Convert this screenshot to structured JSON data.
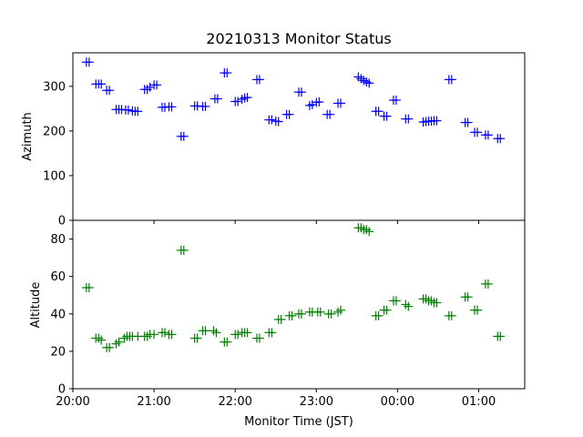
{
  "chart_data": [
    {
      "type": "scatter",
      "title": "20210313 Monitor Status",
      "xlabel": "",
      "ylabel": "Azimuth",
      "marker": "+",
      "color": "#0000ff",
      "ylim": [
        0,
        375
      ],
      "y_ticks": [
        0,
        100,
        200,
        300
      ],
      "x_ticks_hidden": true,
      "series": [
        {
          "points": [
            {
              "x": "20:10",
              "y": 354
            },
            {
              "x": "20:12",
              "y": 354
            },
            {
              "x": "20:17",
              "y": 305
            },
            {
              "x": "20:19",
              "y": 305
            },
            {
              "x": "20:21",
              "y": 305
            },
            {
              "x": "20:25",
              "y": 291
            },
            {
              "x": "20:27",
              "y": 291
            },
            {
              "x": "20:32",
              "y": 248
            },
            {
              "x": "20:34",
              "y": 248
            },
            {
              "x": "20:36",
              "y": 248
            },
            {
              "x": "20:39",
              "y": 247
            },
            {
              "x": "20:41",
              "y": 247
            },
            {
              "x": "20:44",
              "y": 245
            },
            {
              "x": "20:46",
              "y": 244
            },
            {
              "x": "20:48",
              "y": 244
            },
            {
              "x": "20:53",
              "y": 293
            },
            {
              "x": "20:55",
              "y": 293
            },
            {
              "x": "20:57",
              "y": 298
            },
            {
              "x": "21:00",
              "y": 303
            },
            {
              "x": "21:02",
              "y": 303
            },
            {
              "x": "21:06",
              "y": 253
            },
            {
              "x": "21:08",
              "y": 253
            },
            {
              "x": "21:11",
              "y": 254
            },
            {
              "x": "21:13",
              "y": 254
            },
            {
              "x": "21:20",
              "y": 188
            },
            {
              "x": "21:22",
              "y": 188
            },
            {
              "x": "21:30",
              "y": 256
            },
            {
              "x": "21:32",
              "y": 256
            },
            {
              "x": "21:36",
              "y": 255
            },
            {
              "x": "21:38",
              "y": 255
            },
            {
              "x": "21:45",
              "y": 272
            },
            {
              "x": "21:47",
              "y": 272
            },
            {
              "x": "21:52",
              "y": 330
            },
            {
              "x": "21:54",
              "y": 330
            },
            {
              "x": "22:00",
              "y": 266
            },
            {
              "x": "22:02",
              "y": 266
            },
            {
              "x": "22:05",
              "y": 271
            },
            {
              "x": "22:07",
              "y": 274
            },
            {
              "x": "22:09",
              "y": 275
            },
            {
              "x": "22:16",
              "y": 315
            },
            {
              "x": "22:18",
              "y": 315
            },
            {
              "x": "22:25",
              "y": 225
            },
            {
              "x": "22:27",
              "y": 225
            },
            {
              "x": "22:30",
              "y": 222
            },
            {
              "x": "22:32",
              "y": 221
            },
            {
              "x": "22:38",
              "y": 237
            },
            {
              "x": "22:40",
              "y": 237
            },
            {
              "x": "22:47",
              "y": 287
            },
            {
              "x": "22:49",
              "y": 287
            },
            {
              "x": "22:55",
              "y": 257
            },
            {
              "x": "22:57",
              "y": 259
            },
            {
              "x": "23:00",
              "y": 264
            },
            {
              "x": "23:02",
              "y": 265
            },
            {
              "x": "23:08",
              "y": 237
            },
            {
              "x": "23:10",
              "y": 237
            },
            {
              "x": "23:16",
              "y": 262
            },
            {
              "x": "23:18",
              "y": 262
            },
            {
              "x": "23:31",
              "y": 321
            },
            {
              "x": "23:33",
              "y": 317
            },
            {
              "x": "23:35",
              "y": 313
            },
            {
              "x": "23:37",
              "y": 310
            },
            {
              "x": "23:39",
              "y": 307
            },
            {
              "x": "23:44",
              "y": 244
            },
            {
              "x": "23:46",
              "y": 244
            },
            {
              "x": "23:50",
              "y": 233
            },
            {
              "x": "23:52",
              "y": 233
            },
            {
              "x": "23:57",
              "y": 269
            },
            {
              "x": "23:59",
              "y": 269
            },
            {
              "x": "00:06",
              "y": 227
            },
            {
              "x": "00:08",
              "y": 227
            },
            {
              "x": "00:19",
              "y": 220
            },
            {
              "x": "00:21",
              "y": 221
            },
            {
              "x": "00:23",
              "y": 222
            },
            {
              "x": "00:25",
              "y": 222
            },
            {
              "x": "00:27",
              "y": 223
            },
            {
              "x": "00:29",
              "y": 223
            },
            {
              "x": "00:38",
              "y": 315
            },
            {
              "x": "00:40",
              "y": 315
            },
            {
              "x": "00:50",
              "y": 219
            },
            {
              "x": "00:52",
              "y": 219
            },
            {
              "x": "00:57",
              "y": 197
            },
            {
              "x": "00:59",
              "y": 197
            },
            {
              "x": "01:05",
              "y": 191
            },
            {
              "x": "01:07",
              "y": 191
            },
            {
              "x": "01:14",
              "y": 183
            },
            {
              "x": "01:16",
              "y": 183
            }
          ]
        }
      ]
    },
    {
      "type": "scatter",
      "title": "",
      "xlabel": "Monitor Time (JST)",
      "ylabel": "Altitude",
      "marker": "+",
      "color": "#008000",
      "ylim": [
        0,
        90
      ],
      "y_ticks": [
        0,
        20,
        40,
        60,
        80
      ],
      "x_ticks": [
        "20:00",
        "21:00",
        "22:00",
        "23:00",
        "00:00",
        "01:00"
      ],
      "series": [
        {
          "points": [
            {
              "x": "20:10",
              "y": 54
            },
            {
              "x": "20:12",
              "y": 54
            },
            {
              "x": "20:17",
              "y": 27
            },
            {
              "x": "20:19",
              "y": 27
            },
            {
              "x": "20:21",
              "y": 26
            },
            {
              "x": "20:25",
              "y": 22
            },
            {
              "x": "20:27",
              "y": 22
            },
            {
              "x": "20:32",
              "y": 24
            },
            {
              "x": "20:34",
              "y": 25
            },
            {
              "x": "20:38",
              "y": 27
            },
            {
              "x": "20:40",
              "y": 28
            },
            {
              "x": "20:42",
              "y": 28
            },
            {
              "x": "20:44",
              "y": 28
            },
            {
              "x": "20:48",
              "y": 28
            },
            {
              "x": "20:53",
              "y": 28
            },
            {
              "x": "20:55",
              "y": 28
            },
            {
              "x": "20:57",
              "y": 29
            },
            {
              "x": "21:00",
              "y": 29
            },
            {
              "x": "21:06",
              "y": 30
            },
            {
              "x": "21:08",
              "y": 30
            },
            {
              "x": "21:11",
              "y": 29
            },
            {
              "x": "21:13",
              "y": 29
            },
            {
              "x": "21:20",
              "y": 74
            },
            {
              "x": "21:22",
              "y": 74
            },
            {
              "x": "21:30",
              "y": 27
            },
            {
              "x": "21:32",
              "y": 27
            },
            {
              "x": "21:36",
              "y": 31
            },
            {
              "x": "21:38",
              "y": 31
            },
            {
              "x": "21:44",
              "y": 31
            },
            {
              "x": "21:46",
              "y": 30
            },
            {
              "x": "21:52",
              "y": 25
            },
            {
              "x": "21:54",
              "y": 25
            },
            {
              "x": "22:00",
              "y": 29
            },
            {
              "x": "22:02",
              "y": 29
            },
            {
              "x": "22:05",
              "y": 30
            },
            {
              "x": "22:07",
              "y": 30
            },
            {
              "x": "22:09",
              "y": 30
            },
            {
              "x": "22:16",
              "y": 27
            },
            {
              "x": "22:18",
              "y": 27
            },
            {
              "x": "22:25",
              "y": 30
            },
            {
              "x": "22:27",
              "y": 30
            },
            {
              "x": "22:32",
              "y": 37
            },
            {
              "x": "22:34",
              "y": 37
            },
            {
              "x": "22:40",
              "y": 39
            },
            {
              "x": "22:42",
              "y": 39
            },
            {
              "x": "22:47",
              "y": 40
            },
            {
              "x": "22:49",
              "y": 40
            },
            {
              "x": "22:55",
              "y": 41
            },
            {
              "x": "22:57",
              "y": 41
            },
            {
              "x": "23:01",
              "y": 41
            },
            {
              "x": "23:03",
              "y": 41
            },
            {
              "x": "23:09",
              "y": 40
            },
            {
              "x": "23:11",
              "y": 40
            },
            {
              "x": "23:16",
              "y": 41
            },
            {
              "x": "23:18",
              "y": 42
            },
            {
              "x": "23:31",
              "y": 86
            },
            {
              "x": "23:33",
              "y": 86
            },
            {
              "x": "23:35",
              "y": 85
            },
            {
              "x": "23:37",
              "y": 85
            },
            {
              "x": "23:39",
              "y": 84
            },
            {
              "x": "23:44",
              "y": 39
            },
            {
              "x": "23:46",
              "y": 39
            },
            {
              "x": "23:50",
              "y": 42
            },
            {
              "x": "23:52",
              "y": 42
            },
            {
              "x": "23:57",
              "y": 47
            },
            {
              "x": "23:59",
              "y": 47
            },
            {
              "x": "00:06",
              "y": 45
            },
            {
              "x": "00:08",
              "y": 44
            },
            {
              "x": "00:19",
              "y": 48
            },
            {
              "x": "00:21",
              "y": 48
            },
            {
              "x": "00:23",
              "y": 47
            },
            {
              "x": "00:25",
              "y": 47
            },
            {
              "x": "00:27",
              "y": 46
            },
            {
              "x": "00:29",
              "y": 46
            },
            {
              "x": "00:38",
              "y": 39
            },
            {
              "x": "00:40",
              "y": 39
            },
            {
              "x": "00:50",
              "y": 49
            },
            {
              "x": "00:52",
              "y": 49
            },
            {
              "x": "00:57",
              "y": 42
            },
            {
              "x": "00:59",
              "y": 42
            },
            {
              "x": "01:05",
              "y": 56
            },
            {
              "x": "01:07",
              "y": 56
            },
            {
              "x": "01:14",
              "y": 28
            },
            {
              "x": "01:16",
              "y": 28
            }
          ]
        }
      ]
    }
  ]
}
